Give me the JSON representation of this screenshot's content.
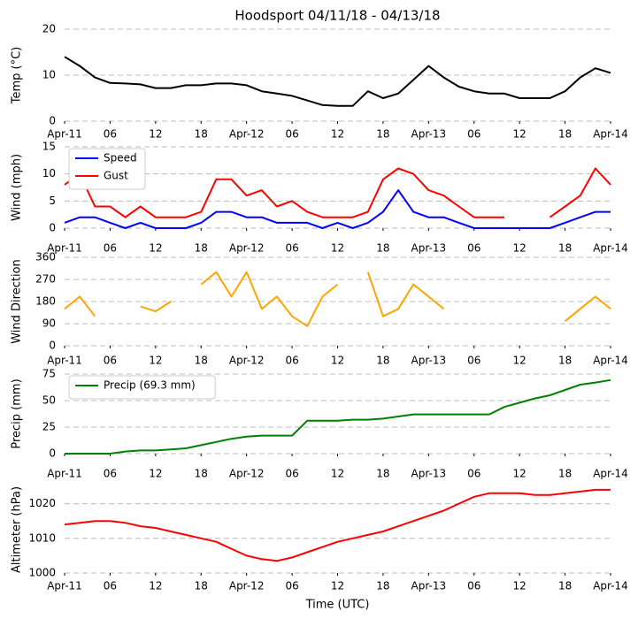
{
  "chart_data": [
    {
      "type": "line",
      "title": "Hoodsport 04/11/18 - 04/13/18",
      "ylabel": "Temp ($^\\circ$C)",
      "x": [
        0,
        2,
        4,
        6,
        8,
        10,
        12,
        14,
        16,
        18,
        20,
        22,
        24,
        26,
        28,
        30,
        32,
        34,
        36,
        38,
        40,
        42,
        44,
        46,
        48,
        50,
        52,
        54,
        56,
        58,
        60,
        62,
        64,
        66,
        68,
        70,
        72
      ],
      "values": [
        14,
        12,
        9.5,
        8.3,
        8.2,
        8,
        7.2,
        7.2,
        7.8,
        7.8,
        8.2,
        8.2,
        7.8,
        6.5,
        6,
        5.5,
        4.5,
        3.5,
        3.3,
        3.3,
        6.5,
        5,
        6,
        9,
        12,
        9.5,
        7.5,
        6.5,
        6,
        6,
        5,
        5,
        5,
        6.5,
        9.5,
        11.5,
        10.5
      ],
      "color": "#000000",
      "xlim": [
        0,
        72
      ],
      "ylim": [
        0,
        20
      ],
      "yticks": [
        0,
        10,
        20
      ],
      "grid": true,
      "xticks": [
        {
          "value": 0,
          "label": "Apr-11"
        },
        {
          "value": 6,
          "label": "06"
        },
        {
          "value": 12,
          "label": "12"
        },
        {
          "value": 18,
          "label": "18"
        },
        {
          "value": 24,
          "label": "Apr-12"
        },
        {
          "value": 30,
          "label": "06"
        },
        {
          "value": 36,
          "label": "12"
        },
        {
          "value": 42,
          "label": "18"
        },
        {
          "value": 48,
          "label": "Apr-13"
        },
        {
          "value": 54,
          "label": "06"
        },
        {
          "value": 60,
          "label": "12"
        },
        {
          "value": 66,
          "label": "18"
        },
        {
          "value": 72,
          "label": "Apr-14"
        }
      ]
    },
    {
      "type": "line",
      "ylabel": "Wind (mph)",
      "x": [
        0,
        2,
        4,
        6,
        8,
        10,
        12,
        14,
        16,
        18,
        20,
        22,
        24,
        26,
        28,
        30,
        32,
        34,
        36,
        38,
        40,
        42,
        44,
        46,
        48,
        50,
        52,
        54,
        56,
        58,
        60,
        62,
        64,
        66,
        68,
        70,
        72
      ],
      "series": [
        {
          "name": "Speed",
          "color": "#0000ff",
          "values": [
            1,
            2,
            2,
            1,
            0,
            1,
            0,
            0,
            0,
            1,
            3,
            3,
            2,
            2,
            1,
            1,
            1,
            0,
            1,
            0,
            1,
            3,
            7,
            3,
            2,
            2,
            1,
            0,
            0,
            0,
            0,
            0,
            0,
            1,
            2,
            3,
            3
          ]
        },
        {
          "name": "Gust",
          "color": "#ff0000",
          "values": [
            8,
            10,
            4,
            4,
            2,
            4,
            2,
            2,
            2,
            3,
            9,
            9,
            6,
            7,
            4,
            5,
            3,
            2,
            2,
            2,
            3,
            9,
            11,
            10,
            7,
            6,
            4,
            2,
            2,
            2,
            null,
            null,
            2,
            4,
            6,
            11,
            8
          ]
        }
      ],
      "legend": "upper left",
      "xlim": [
        0,
        72
      ],
      "ylim": [
        0,
        15
      ],
      "yticks": [
        0,
        5,
        10,
        15
      ],
      "grid": true,
      "xticks": [
        {
          "value": 0,
          "label": "Apr-11"
        },
        {
          "value": 6,
          "label": "06"
        },
        {
          "value": 12,
          "label": "12"
        },
        {
          "value": 18,
          "label": "18"
        },
        {
          "value": 24,
          "label": "Apr-12"
        },
        {
          "value": 30,
          "label": "06"
        },
        {
          "value": 36,
          "label": "12"
        },
        {
          "value": 42,
          "label": "18"
        },
        {
          "value": 48,
          "label": "Apr-13"
        },
        {
          "value": 54,
          "label": "06"
        },
        {
          "value": 60,
          "label": "12"
        },
        {
          "value": 66,
          "label": "18"
        },
        {
          "value": 72,
          "label": "Apr-14"
        }
      ]
    },
    {
      "type": "line",
      "ylabel": "Wind Direction",
      "x": [
        0,
        2,
        4,
        6,
        8,
        10,
        12,
        14,
        16,
        18,
        20,
        22,
        24,
        26,
        28,
        30,
        32,
        34,
        36,
        38,
        40,
        42,
        44,
        46,
        48,
        50,
        52,
        54,
        56,
        58,
        60,
        62,
        64,
        66,
        68,
        70,
        72
      ],
      "values": [
        150,
        200,
        120,
        null,
        null,
        160,
        140,
        180,
        null,
        250,
        300,
        200,
        300,
        150,
        200,
        120,
        80,
        200,
        250,
        null,
        300,
        120,
        150,
        250,
        200,
        150,
        null,
        null,
        null,
        null,
        null,
        null,
        null,
        100,
        150,
        200,
        150
      ],
      "color": "#ffa500",
      "xlim": [
        0,
        72
      ],
      "ylim": [
        0,
        360
      ],
      "yticks": [
        0,
        90,
        180,
        270,
        360
      ],
      "grid": true,
      "xticks": [
        {
          "value": 0,
          "label": "Apr-11"
        },
        {
          "value": 6,
          "label": "06"
        },
        {
          "value": 12,
          "label": "12"
        },
        {
          "value": 18,
          "label": "18"
        },
        {
          "value": 24,
          "label": "Apr-12"
        },
        {
          "value": 30,
          "label": "06"
        },
        {
          "value": 36,
          "label": "12"
        },
        {
          "value": 42,
          "label": "18"
        },
        {
          "value": 48,
          "label": "Apr-13"
        },
        {
          "value": 54,
          "label": "06"
        },
        {
          "value": 60,
          "label": "12"
        },
        {
          "value": 66,
          "label": "18"
        },
        {
          "value": 72,
          "label": "Apr-14"
        }
      ]
    },
    {
      "type": "line",
      "ylabel": "Precip (mm)",
      "x": [
        0,
        2,
        4,
        6,
        8,
        10,
        12,
        14,
        16,
        18,
        20,
        22,
        24,
        26,
        28,
        30,
        32,
        34,
        36,
        38,
        40,
        42,
        44,
        46,
        48,
        50,
        52,
        54,
        56,
        58,
        60,
        62,
        64,
        66,
        68,
        70,
        72
      ],
      "series": [
        {
          "name": "Precip (69.3 mm)",
          "color": "#008000",
          "values": [
            0,
            0,
            0,
            0,
            2,
            3,
            3,
            4,
            5,
            8,
            11,
            14,
            16,
            17,
            17,
            17,
            31,
            31,
            31,
            32,
            32,
            33,
            35,
            37,
            37,
            37,
            37,
            37,
            37,
            44,
            48,
            52,
            55,
            60,
            65,
            67,
            69.3
          ]
        }
      ],
      "legend": "upper left",
      "xlim": [
        0,
        72
      ],
      "ylim": [
        0,
        75
      ],
      "yticks": [
        0,
        25,
        50,
        75
      ],
      "grid": true,
      "xticks": [
        {
          "value": 0,
          "label": "Apr-11"
        },
        {
          "value": 6,
          "label": "06"
        },
        {
          "value": 12,
          "label": "12"
        },
        {
          "value": 18,
          "label": "18"
        },
        {
          "value": 24,
          "label": "Apr-12"
        },
        {
          "value": 30,
          "label": "06"
        },
        {
          "value": 36,
          "label": "12"
        },
        {
          "value": 42,
          "label": "18"
        },
        {
          "value": 48,
          "label": "Apr-13"
        },
        {
          "value": 54,
          "label": "06"
        },
        {
          "value": 60,
          "label": "12"
        },
        {
          "value": 66,
          "label": "18"
        },
        {
          "value": 72,
          "label": "Apr-14"
        }
      ]
    },
    {
      "type": "line",
      "ylabel": "Altimeter (hPa)",
      "xlabel": "Time (UTC)",
      "x": [
        0,
        2,
        4,
        6,
        8,
        10,
        12,
        14,
        16,
        18,
        20,
        22,
        24,
        26,
        28,
        30,
        32,
        34,
        36,
        38,
        40,
        42,
        44,
        46,
        48,
        50,
        52,
        54,
        56,
        58,
        60,
        62,
        64,
        66,
        68,
        70,
        72
      ],
      "values": [
        1014,
        1014.5,
        1015,
        1015,
        1014.5,
        1013.5,
        1013,
        1012,
        1011,
        1010,
        1009,
        1007,
        1005,
        1004,
        1003.5,
        1004.5,
        1006,
        1007.5,
        1009,
        1010,
        1011,
        1012,
        1013.5,
        1015,
        1016.5,
        1018,
        1020,
        1022,
        1023,
        1023,
        1023,
        1022.5,
        1022.5,
        1023,
        1023.5,
        1024,
        1024
      ],
      "color": "#ff0000",
      "xlim": [
        0,
        72
      ],
      "ylim": [
        1000,
        1025
      ],
      "yticks": [
        1000,
        1010,
        1020
      ],
      "grid": true,
      "xticks": [
        {
          "value": 0,
          "label": "Apr-11"
        },
        {
          "value": 6,
          "label": "06"
        },
        {
          "value": 12,
          "label": "12"
        },
        {
          "value": 18,
          "label": "18"
        },
        {
          "value": 24,
          "label": "Apr-12"
        },
        {
          "value": 30,
          "label": "06"
        },
        {
          "value": 36,
          "label": "12"
        },
        {
          "value": 42,
          "label": "18"
        },
        {
          "value": 48,
          "label": "Apr-13"
        },
        {
          "value": 54,
          "label": "06"
        },
        {
          "value": 60,
          "label": "12"
        },
        {
          "value": 66,
          "label": "18"
        },
        {
          "value": 72,
          "label": "Apr-14"
        }
      ]
    }
  ]
}
